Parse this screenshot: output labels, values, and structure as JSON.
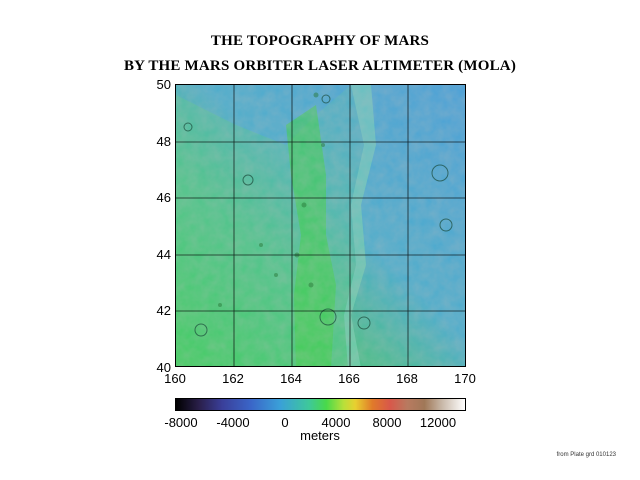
{
  "title_line1": "THE TOPOGRAPHY OF MARS",
  "title_line2": "BY THE MARS ORBITER LASER ALTIMETER (MOLA)",
  "map": {
    "x_ticks": [
      "160",
      "162",
      "164",
      "166",
      "168",
      "170"
    ],
    "y_ticks": [
      "50",
      "48",
      "46",
      "44",
      "42",
      "40"
    ],
    "x_range": [
      160,
      170
    ],
    "y_range": [
      40,
      50
    ],
    "grid": true
  },
  "colorbar": {
    "ticks": [
      "-8000",
      "-4000",
      "0",
      "4000",
      "8000",
      "12000"
    ],
    "units": "meters"
  },
  "credit": "from Plate grd 010123",
  "colors": {
    "lowland": "#4aa6d6",
    "highland": "#53c867",
    "ridge": "#2ec040"
  }
}
